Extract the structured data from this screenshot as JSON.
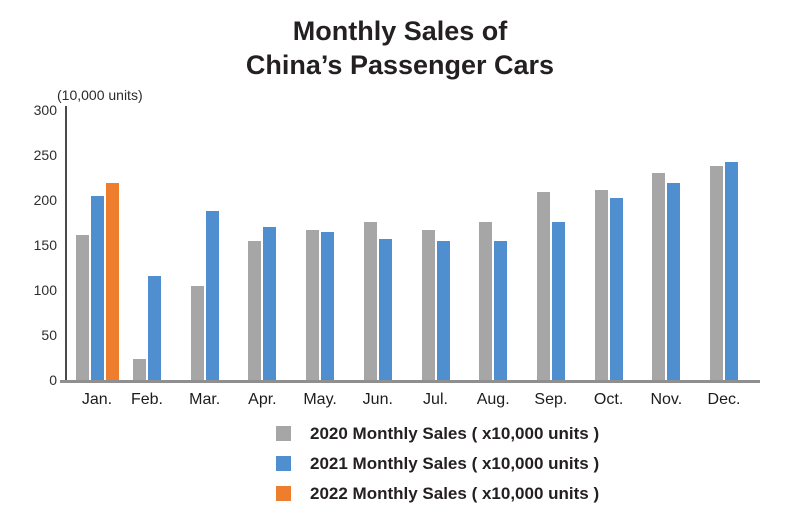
{
  "title": {
    "line1": "Monthly Sales of",
    "line2": "China’s Passenger Cars"
  },
  "y_axis_unit_label": "(10,000 units)",
  "colors": {
    "series_2020": "#a6a6a6",
    "series_2021": "#4f8fd0",
    "series_2022": "#ee7d2d",
    "y_axis_line": "#4a4a4a",
    "x_axis_line": "#8f8f8f",
    "text": "#241f21"
  },
  "chart_data": {
    "type": "bar",
    "title": "Monthly Sales of China’s Passenger Cars",
    "unit_label": "(10,000 units)",
    "categories": [
      "Jan.",
      "Feb.",
      "Mar.",
      "Apr.",
      "May.",
      "Jun.",
      "Jul.",
      "Aug.",
      "Sep.",
      "Oct.",
      "Nov.",
      "Dec."
    ],
    "series": [
      {
        "name": "2020 Monthly Sales ( x10,000 units )",
        "year": "2020",
        "color": "#a6a6a6",
        "values": [
          161,
          23,
          105,
          154,
          167,
          176,
          167,
          176,
          209,
          211,
          230,
          238
        ]
      },
      {
        "name": "2021 Monthly Sales ( x10,000 units )",
        "year": "2021",
        "color": "#4f8fd0",
        "values": [
          204,
          116,
          188,
          170,
          165,
          157,
          155,
          155,
          176,
          202,
          219,
          242
        ]
      },
      {
        "name": "2022 Monthly Sales ( x10,000 units )",
        "year": "2022",
        "color": "#ee7d2d",
        "values": [
          219,
          null,
          null,
          null,
          null,
          null,
          null,
          null,
          null,
          null,
          null,
          null
        ]
      }
    ],
    "yticks": [
      0,
      50,
      100,
      150,
      200,
      250,
      300
    ],
    "ylim": [
      0,
      300
    ],
    "grid": false,
    "legend_position": "bottom-center"
  }
}
